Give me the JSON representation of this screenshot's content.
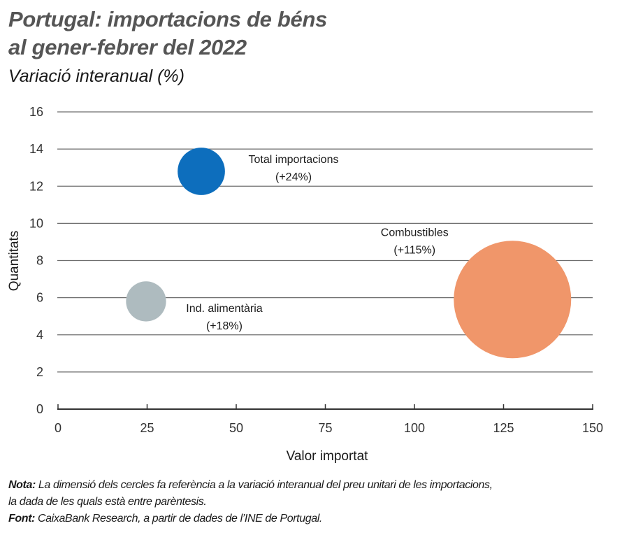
{
  "header": {
    "title_line1": "Portugal: importacions de béns",
    "title_line2": "al gener-febrer del 2022",
    "subtitle": "Variació interanual (%)"
  },
  "chart_data": {
    "type": "scatter",
    "subtype": "bubble",
    "title": "Portugal: importacions de béns al gener-febrer del 2022",
    "subtitle": "Variació interanual (%)",
    "xlabel": "Valor importat",
    "ylabel": "Quantitats",
    "xlim": [
      0,
      150
    ],
    "ylim": [
      0,
      16
    ],
    "xticks": [
      0,
      25,
      50,
      75,
      100,
      125,
      150
    ],
    "yticks": [
      0,
      2,
      4,
      6,
      8,
      10,
      12,
      14,
      16
    ],
    "grid": "horizontal",
    "series": [
      {
        "name": "Total importacions",
        "label_line1": "Total importacions",
        "label_line2": "(+24%)",
        "x": 40.2,
        "y": 12.8,
        "size": 24,
        "color": "#0d6ebd"
      },
      {
        "name": "Ind. alimentària",
        "label_line1": "Ind. alimentària",
        "label_line2": "(+18%)",
        "x": 24.7,
        "y": 5.8,
        "size": 18,
        "color": "#aebbbf"
      },
      {
        "name": "Combustibles",
        "label_line1": "Combustibles",
        "label_line2": "(+115%)",
        "x": 127.5,
        "y": 5.9,
        "size": 115,
        "color": "#f0966a"
      }
    ]
  },
  "notes": {
    "nota_label": "Nota:",
    "nota_text_line1": " La dimensió dels cercles fa referència a la variació interanual del preu unitari de les importacions,",
    "nota_text_line2": "la dada de les quals està entre parèntesis.",
    "font_label": "Font:",
    "font_text": " CaixaBank Research, a partir de dades de l’INE de Portugal."
  }
}
